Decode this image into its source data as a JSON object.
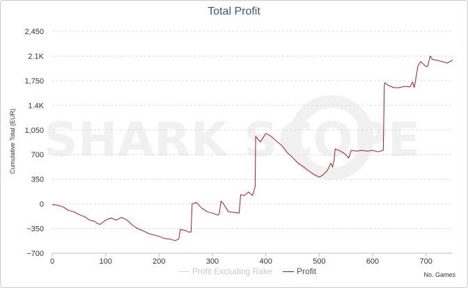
{
  "colors": {
    "profit_line": "#a51c1c",
    "excluding_rake": "#cccccc",
    "grid": "#dadada",
    "title": "#3e576f",
    "watermark": "#f1f1f1"
  },
  "watermark": "SHARK SCOPE",
  "chart_data": {
    "type": "line",
    "title": "Total Profit",
    "xlabel": "No. Games",
    "ylabel": "Cumulative Total (EUR)",
    "xlim": [
      0,
      750
    ],
    "ylim": [
      -700,
      2450
    ],
    "x_ticks": [
      0,
      100,
      200,
      300,
      400,
      500,
      600,
      700
    ],
    "y_ticks": [
      -700,
      -350,
      0,
      350,
      700,
      1050,
      1400,
      1750,
      2100,
      2450
    ],
    "y_tick_labels": [
      "−700",
      "−350",
      "0",
      "350",
      "700",
      "1,050",
      "1.4K",
      "1,750",
      "2.1K",
      "2,450"
    ],
    "grid": "horizontal dashed",
    "legend_position": "bottom-center",
    "legend": [
      {
        "name": "Profit Excluding Rake",
        "state": "hidden"
      },
      {
        "name": "Profit",
        "state": "visible"
      }
    ],
    "series": [
      {
        "name": "Profit",
        "x": [
          0,
          10,
          20,
          30,
          40,
          50,
          60,
          70,
          80,
          85,
          90,
          100,
          110,
          120,
          130,
          140,
          150,
          160,
          170,
          180,
          190,
          200,
          210,
          220,
          230,
          237,
          240,
          250,
          255,
          260,
          262,
          270,
          280,
          290,
          300,
          310,
          313,
          316,
          320,
          330,
          340,
          350,
          353,
          360,
          368,
          370,
          375,
          380,
          381,
          385,
          390,
          400,
          410,
          420,
          430,
          440,
          450,
          460,
          470,
          480,
          490,
          500,
          505,
          515,
          522,
          525,
          528,
          530,
          540,
          550,
          555,
          560,
          570,
          580,
          590,
          600,
          610,
          620,
          622,
          623,
          630,
          640,
          650,
          660,
          670,
          675,
          678,
          685,
          690,
          700,
          703,
          708,
          712,
          720,
          730,
          740,
          750
        ],
        "y": [
          -10,
          -20,
          -40,
          -90,
          -110,
          -150,
          -180,
          -230,
          -250,
          -280,
          -290,
          -230,
          -200,
          -230,
          -190,
          -230,
          -300,
          -350,
          -380,
          -420,
          -440,
          -460,
          -490,
          -500,
          -520,
          -500,
          -360,
          -380,
          -400,
          -400,
          0,
          20,
          -60,
          -110,
          -130,
          -160,
          -130,
          40,
          10,
          -110,
          -120,
          -130,
          130,
          120,
          170,
          150,
          120,
          240,
          960,
          920,
          880,
          1000,
          960,
          890,
          830,
          730,
          660,
          580,
          530,
          470,
          420,
          380,
          400,
          470,
          580,
          520,
          630,
          780,
          750,
          700,
          650,
          760,
          750,
          760,
          750,
          760,
          740,
          760,
          1680,
          1720,
          1680,
          1650,
          1650,
          1670,
          1660,
          1730,
          1650,
          1960,
          2020,
          1950,
          1950,
          2100,
          2050,
          2040,
          2020,
          2000,
          2040
        ]
      }
    ]
  }
}
